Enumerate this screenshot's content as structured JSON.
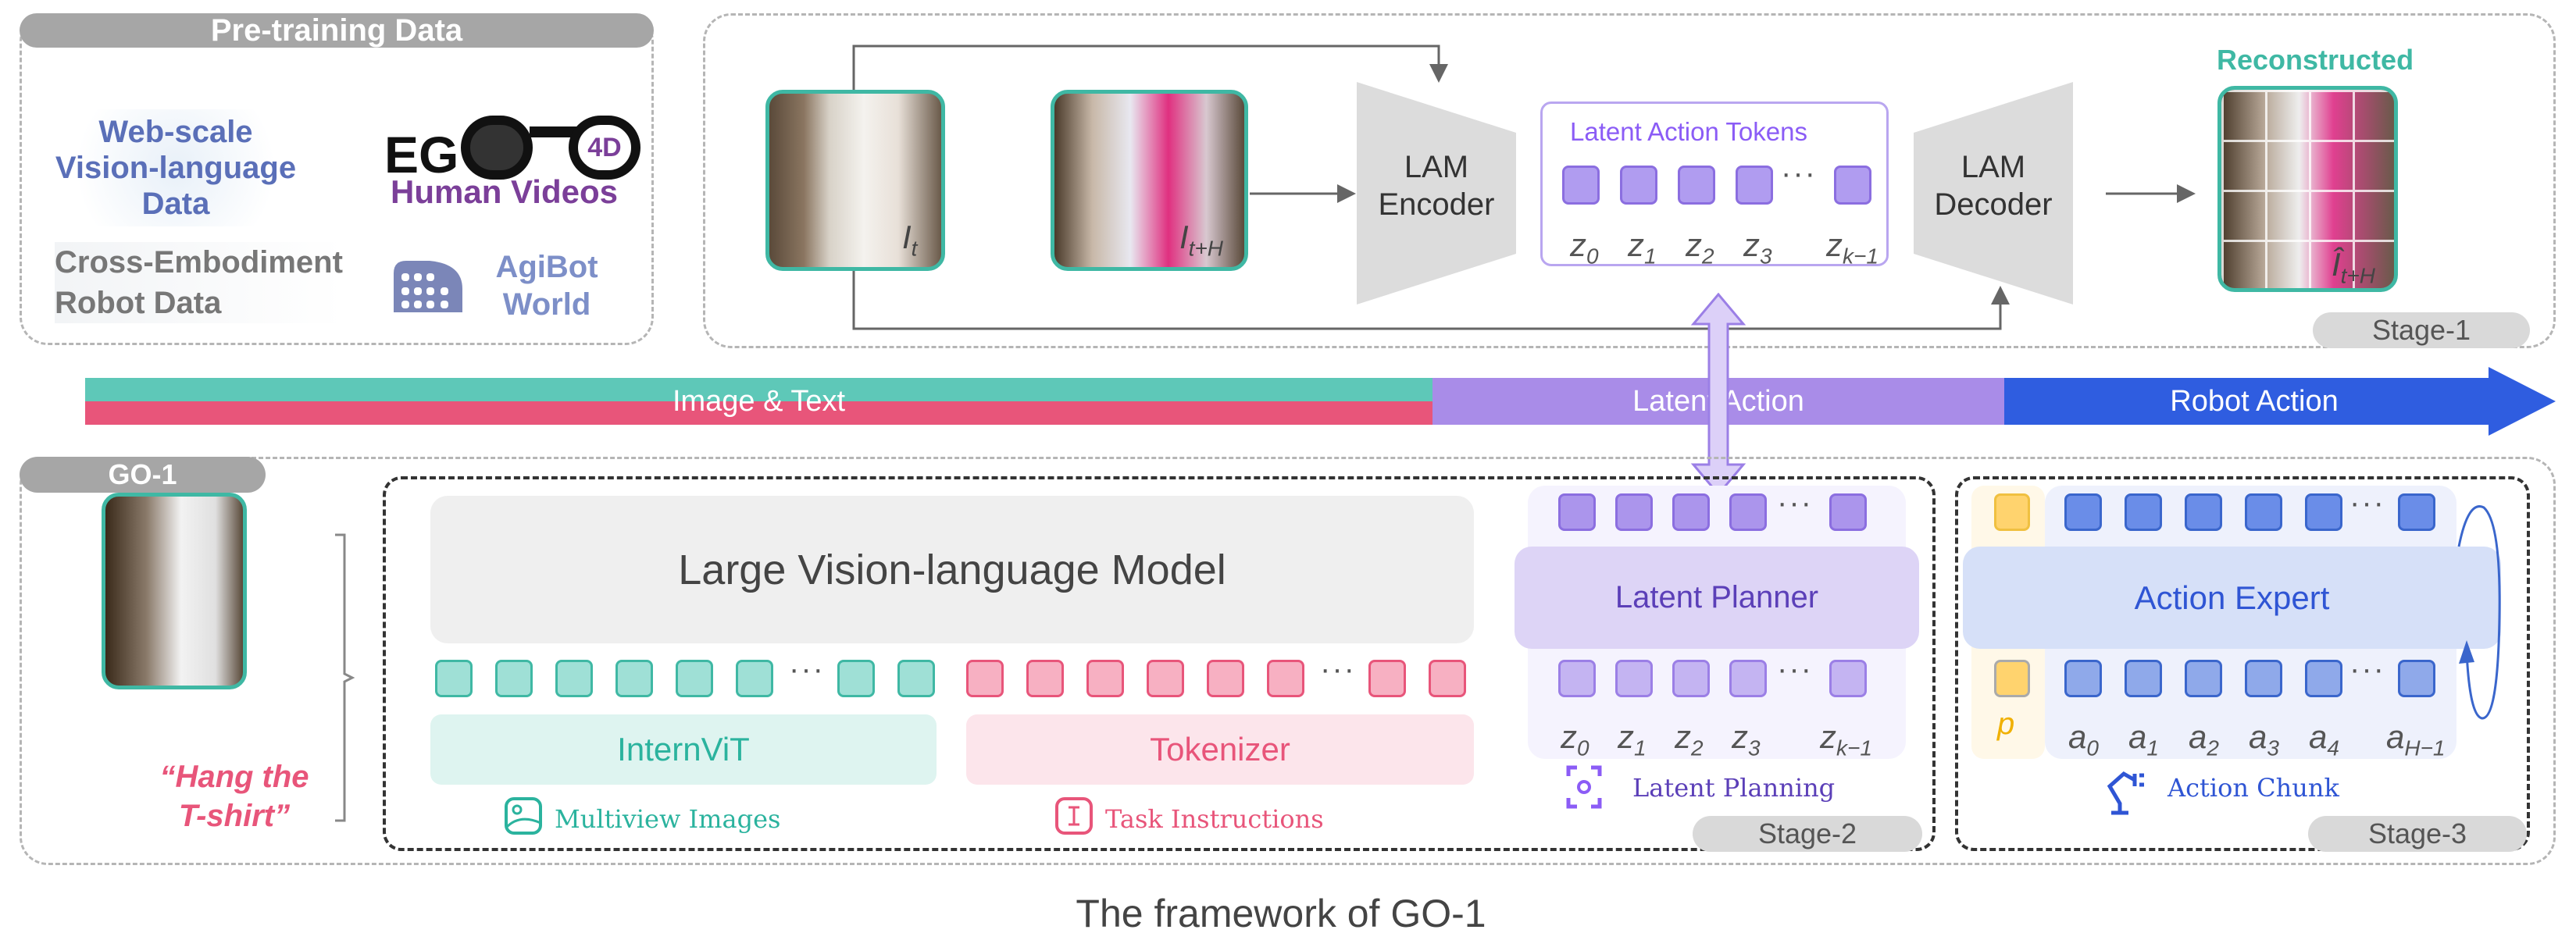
{
  "pretraining": {
    "title": "Pre-training Data",
    "web_scale": [
      "Web-scale",
      "Vision-language",
      "Data"
    ],
    "ego4d_logo": "EGO4D",
    "human_videos": "Human Videos",
    "cross_embodiment": [
      "Cross-Embodiment",
      "Robot Data"
    ],
    "agibot": [
      "AgiBot",
      "World"
    ]
  },
  "stage1": {
    "image_t": {
      "base": "I",
      "sub": "t"
    },
    "image_tH": {
      "base": "I",
      "sub": "t+H"
    },
    "encoder": [
      "LAM",
      "Encoder"
    ],
    "decoder": [
      "LAM",
      "Decoder"
    ],
    "tokens_title": "Latent Action Tokens",
    "reconstructed": "Reconstructed",
    "image_recon": {
      "base": "Î",
      "sub": "t+H"
    },
    "stage_label": "Stage-1"
  },
  "timeline": {
    "image_text": "Image & Text",
    "latent_action": "Latent Action",
    "robot_action": "Robot Action"
  },
  "go1": {
    "label": "GO-1",
    "instruction": [
      "“Hang the",
      "T-shirt”"
    ],
    "lvlm": "Large Vision-language Model",
    "internvit": "InternViT",
    "tokenizer": "Tokenizer",
    "multiview": "Multiview Images",
    "task_instructions": "Task Instructions",
    "latent_planner": "Latent Planner",
    "latent_planning": "Latent Planning",
    "stage2": "Stage-2",
    "action_expert": "Action Expert",
    "action_chunk": "Action Chunk",
    "proprio": "p",
    "stage3": "Stage-3"
  },
  "z_labels": [
    {
      "b": "z",
      "s": "0"
    },
    {
      "b": "z",
      "s": "1"
    },
    {
      "b": "z",
      "s": "2"
    },
    {
      "b": "z",
      "s": "3"
    },
    {
      "b": "z",
      "s": "k−1"
    }
  ],
  "a_labels": [
    {
      "b": "a",
      "s": "0"
    },
    {
      "b": "a",
      "s": "1"
    },
    {
      "b": "a",
      "s": "2"
    },
    {
      "b": "a",
      "s": "3"
    },
    {
      "b": "a",
      "s": "4"
    },
    {
      "b": "a",
      "s": "H−1"
    }
  ],
  "ellipsis": "···",
  "caption": "The framework of GO-1",
  "colors": {
    "teal": "#3fb8a4",
    "pink": "#e8557a",
    "purple": "#9b7fe6",
    "blue": "#2f55d4",
    "gray_pill": "#a6a6a6",
    "stage_pill": "#d9d9d9",
    "yellow": "#ffd36e"
  }
}
